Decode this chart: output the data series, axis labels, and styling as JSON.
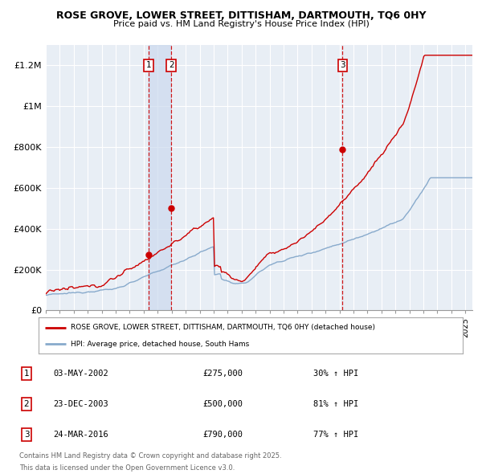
{
  "title_line1": "ROSE GROVE, LOWER STREET, DITTISHAM, DARTMOUTH, TQ6 0HY",
  "title_line2": "Price paid vs. HM Land Registry's House Price Index (HPI)",
  "ylabel_ticks": [
    "£0",
    "£200K",
    "£400K",
    "£600K",
    "£800K",
    "£1M",
    "£1.2M"
  ],
  "ytick_values": [
    0,
    200000,
    400000,
    600000,
    800000,
    1000000,
    1200000
  ],
  "ylim": [
    0,
    1300000
  ],
  "xlim_start": 1995.0,
  "xlim_end": 2025.5,
  "background_color": "#ffffff",
  "plot_bg_color": "#e8eef5",
  "grid_color": "#ffffff",
  "hpi_line_color": "#88aacc",
  "price_line_color": "#cc0000",
  "transaction_line_color": "#cc0000",
  "shade_color": "#ccdaee",
  "transactions": [
    {
      "id": 1,
      "date": 2002.35,
      "price": 275000,
      "label": "03-MAY-2002",
      "pct": "30% ↑ HPI"
    },
    {
      "id": 2,
      "date": 2003.97,
      "price": 500000,
      "label": "23-DEC-2003",
      "pct": "81% ↑ HPI"
    },
    {
      "id": 3,
      "date": 2016.22,
      "price": 790000,
      "label": "24-MAR-2016",
      "pct": "77% ↑ HPI"
    }
  ],
  "legend_house_label": "ROSE GROVE, LOWER STREET, DITTISHAM, DARTMOUTH, TQ6 0HY (detached house)",
  "legend_hpi_label": "HPI: Average price, detached house, South Hams",
  "footer_line1": "Contains HM Land Registry data © Crown copyright and database right 2025.",
  "footer_line2": "This data is licensed under the Open Government Licence v3.0."
}
